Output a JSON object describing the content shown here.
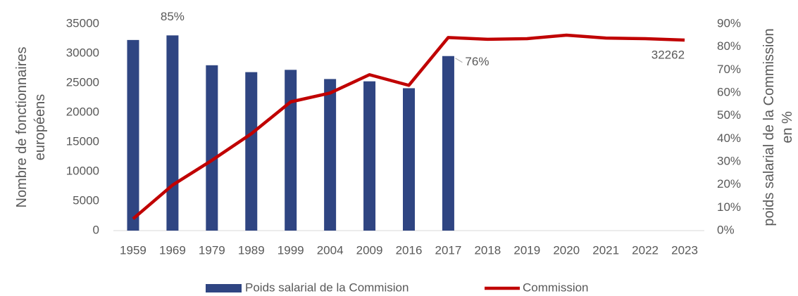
{
  "chart_data": {
    "type": "bar-line",
    "categories": [
      "1959",
      "1969",
      "1979",
      "1989",
      "1999",
      "2004",
      "2009",
      "2016",
      "2017",
      "2018",
      "2019",
      "2020",
      "2021",
      "2022",
      "2023"
    ],
    "ylabel": [
      "Nombre de fonctionnaires",
      "européens"
    ],
    "y2label": [
      "poids salarial de la Commission",
      "en %"
    ],
    "ylim": [
      0,
      35000
    ],
    "yticks": [
      0,
      5000,
      10000,
      15000,
      20000,
      25000,
      30000,
      35000
    ],
    "y2lim": [
      0,
      90
    ],
    "y2ticks": [
      {
        "value": 0,
        "label": "0%"
      },
      {
        "value": 10,
        "label": "10%"
      },
      {
        "value": 20,
        "label": "20%"
      },
      {
        "value": 30,
        "label": "30%"
      },
      {
        "value": 40,
        "label": "40%"
      },
      {
        "value": 50,
        "label": "50%"
      },
      {
        "value": 60,
        "label": "60%"
      },
      {
        "value": 70,
        "label": "70%"
      },
      {
        "value": 80,
        "label": "80%"
      },
      {
        "value": 90,
        "label": "90%"
      }
    ],
    "series": [
      {
        "name": "Poids salarial de la Commision",
        "type": "bar",
        "axis": "y2",
        "color": "#2f4582",
        "values": [
          83,
          85,
          72,
          69,
          70,
          66,
          65,
          62,
          76,
          null,
          null,
          null,
          null,
          null,
          null
        ],
        "value_labels": [
          null,
          "85%",
          null,
          null,
          null,
          null,
          null,
          null,
          "76%",
          null,
          null,
          null,
          null,
          null,
          null
        ]
      },
      {
        "name": "Commission",
        "type": "line",
        "axis": "y",
        "color": "#c00000",
        "values": [
          2000,
          7700,
          11900,
          16400,
          21800,
          23300,
          26400,
          24600,
          32700,
          32400,
          32500,
          33100,
          32600,
          32500,
          32262
        ],
        "value_labels": [
          null,
          null,
          null,
          null,
          null,
          null,
          null,
          null,
          null,
          null,
          null,
          null,
          null,
          null,
          "32262"
        ]
      }
    ]
  }
}
